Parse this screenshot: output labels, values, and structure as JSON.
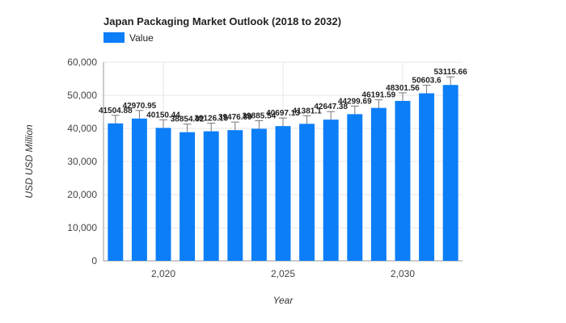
{
  "chart_data": {
    "type": "bar",
    "title": "Japan Packaging Market Outlook (2018 to 2032)",
    "legend": [
      "Value"
    ],
    "legend_position": "top-left",
    "xlabel": "Year",
    "ylabel": "USD USD Million",
    "x": [
      2018,
      2019,
      2020,
      2021,
      2022,
      2023,
      2024,
      2025,
      2026,
      2027,
      2028,
      2029,
      2030,
      2031,
      2032
    ],
    "values": [
      41504.88,
      42970.95,
      40150.44,
      38854.02,
      39126.15,
      39476.89,
      39885.54,
      40697.13,
      41381.1,
      42647.38,
      44299.69,
      46191.59,
      48301.56,
      50603.6,
      53115.66
    ],
    "data_labels": [
      "41504.88",
      "42970.95",
      "40150.44",
      "38854.02",
      "39126.15",
      "39476.89",
      "39885.54",
      "40697.13",
      "41381.1",
      "42647.38",
      "44299.69",
      "46191.59",
      "48301.56",
      "50603.6",
      "53115.66"
    ],
    "x_ticks": [
      2020,
      2025,
      2030
    ],
    "x_tick_labels": [
      "2,020",
      "2,025",
      "2,030"
    ],
    "y_ticks": [
      0,
      10000,
      20000,
      30000,
      40000,
      50000,
      60000
    ],
    "y_tick_labels": [
      "0",
      "10,000",
      "20,000",
      "30,000",
      "40,000",
      "50,000",
      "60,000"
    ],
    "ylim": [
      0,
      60000
    ],
    "xlim": [
      2017.5,
      2032.5
    ],
    "grid": true,
    "colors": {
      "bar": "#0c7ef7",
      "grid": "#e6e6e6",
      "axis": "#999999",
      "whisker": "#777777"
    }
  }
}
